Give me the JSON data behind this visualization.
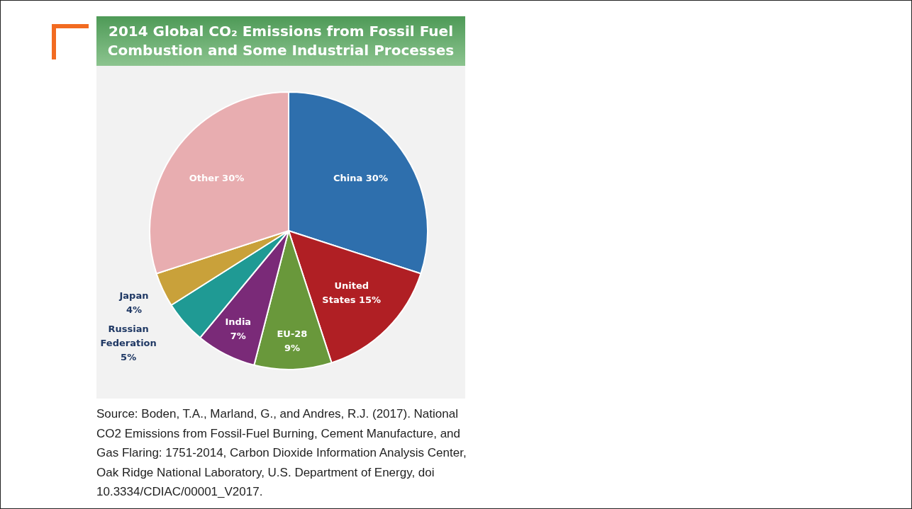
{
  "chart_data": {
    "type": "pie",
    "title": "2014 Global CO₂ Emissions from Fossil Fuel Combustion and Some Industrial Processes",
    "categories": [
      "China",
      "United States",
      "EU-28",
      "India",
      "Russian Federation",
      "Japan",
      "Other"
    ],
    "values": [
      30,
      15,
      9,
      7,
      5,
      4,
      30
    ],
    "colors": [
      "#2e6fad",
      "#b01f24",
      "#69983b",
      "#7a2a78",
      "#1f9a94",
      "#c9a13a",
      "#e8adb0"
    ],
    "value_labels": [
      "30%",
      "15%",
      "9%",
      "7%",
      "5%",
      "4%",
      "30%"
    ],
    "legend": false,
    "annotations": [
      "Source: Boden, T.A., Marland, G., and Andres, R.J. (2017). National CO2 Emissions from Fossil-Fuel Burning, Cement Manufacture, and Gas Flaring: 1751-2014, Carbon Dioxide Information Analysis Center, Oak Ridge National Laboratory, U.S. Department of Energy, doi 10.3334/CDIAC/00001_V2017."
    ]
  }
}
